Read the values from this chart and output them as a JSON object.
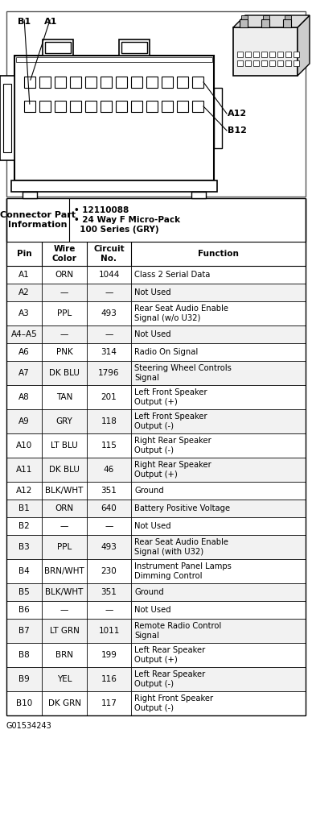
{
  "col_headers": [
    "Pin",
    "Wire\nColor",
    "Circuit\nNo.",
    "Function"
  ],
  "rows": [
    [
      "A1",
      "ORN",
      "1044",
      "Class 2 Serial Data"
    ],
    [
      "A2",
      "—",
      "—",
      "Not Used"
    ],
    [
      "A3",
      "PPL",
      "493",
      "Rear Seat Audio Enable\nSignal (w/o U32)"
    ],
    [
      "A4–A5",
      "—",
      "—",
      "Not Used"
    ],
    [
      "A6",
      "PNK",
      "314",
      "Radio On Signal"
    ],
    [
      "A7",
      "DK BLU",
      "1796",
      "Steering Wheel Controls\nSignal"
    ],
    [
      "A8",
      "TAN",
      "201",
      "Left Front Speaker\nOutput (+)"
    ],
    [
      "A9",
      "GRY",
      "118",
      "Left Front Speaker\nOutput (-)"
    ],
    [
      "A10",
      "LT BLU",
      "115",
      "Right Rear Speaker\nOutput (-)"
    ],
    [
      "A11",
      "DK BLU",
      "46",
      "Right Rear Speaker\nOutput (+)"
    ],
    [
      "A12",
      "BLK/WHT",
      "351",
      "Ground"
    ],
    [
      "B1",
      "ORN",
      "640",
      "Battery Positive Voltage"
    ],
    [
      "B2",
      "—",
      "—",
      "Not Used"
    ],
    [
      "B3",
      "PPL",
      "493",
      "Rear Seat Audio Enable\nSignal (with U32)"
    ],
    [
      "B4",
      "BRN/WHT",
      "230",
      "Instrument Panel Lamps\nDimming Control"
    ],
    [
      "B5",
      "BLK/WHT",
      "351",
      "Ground"
    ],
    [
      "B6",
      "—",
      "—",
      "Not Used"
    ],
    [
      "B7",
      "LT GRN",
      "1011",
      "Remote Radio Control\nSignal"
    ],
    [
      "B8",
      "BRN",
      "199",
      "Left Rear Speaker\nOutput (+)"
    ],
    [
      "B9",
      "YEL",
      "116",
      "Left Rear Speaker\nOutput (-)"
    ],
    [
      "B10",
      "DK GRN",
      "117",
      "Right Front Speaker\nOutput (-)"
    ]
  ],
  "footer": "G01534243",
  "fig_width": 3.88,
  "fig_height": 10.24
}
